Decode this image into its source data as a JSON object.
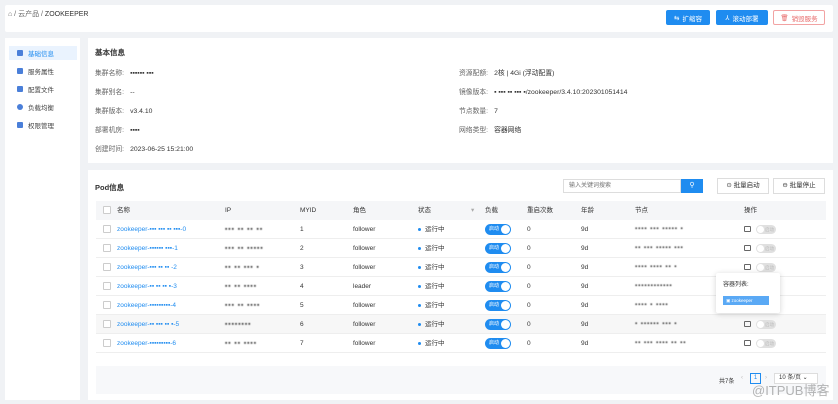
{
  "breadcrumb": {
    "home_icon": "home-icon",
    "items": [
      "云产品",
      "ZOOKEEPER"
    ]
  },
  "actions": {
    "scale": "扩缩容",
    "rolling": "滚动部署",
    "destroy": "销毁服务"
  },
  "sidebar": {
    "items": [
      {
        "label": "基础信息",
        "active": true
      },
      {
        "label": "服务属性"
      },
      {
        "label": "配置文件"
      },
      {
        "label": "负载均衡"
      },
      {
        "label": "权限管理"
      }
    ]
  },
  "basic": {
    "title": "基本信息",
    "left": [
      {
        "k": "集群名称:",
        "v": "▪▪▪▪▪▪ ▪▪▪"
      },
      {
        "k": "集群别名:",
        "v": "--"
      },
      {
        "k": "集群版本:",
        "v": "v3.4.10"
      },
      {
        "k": "部署机房:",
        "v": "▪▪▪▪"
      },
      {
        "k": "创建时间:",
        "v": "2023-06-25 15:21:00"
      }
    ],
    "right": [
      {
        "k": "资源配额:",
        "v": "2核 | 4Gi (浮动配置)"
      },
      {
        "k": "镜像版本:",
        "v": "▪ ▪▪▪ ▪▪ ▪▪▪ ▪/zookeeper/3.4.10:202301051414"
      },
      {
        "k": "节点数量:",
        "v": "7"
      },
      {
        "k": "网络类型:",
        "v": "容器网络"
      }
    ]
  },
  "pods": {
    "title": "Pod信息",
    "search_placeholder": "输入关键词搜索",
    "batch_start": "批量启动",
    "batch_stop": "批量停止",
    "columns": [
      "名称",
      "IP",
      "MYID",
      "角色",
      "状态",
      "负载",
      "重启次数",
      "年龄",
      "节点",
      "操作"
    ],
    "rows": [
      {
        "name": "zookeeper-▪▪▪ ▪▪▪ ▪▪ ▪▪▪-0",
        "ip": "▪▪▪ ▪▪ ▪▪ ▪▪",
        "myid": "1",
        "role": "follower",
        "status": "运行中",
        "load": "启动",
        "restarts": "0",
        "age": "9d",
        "node": "▪▪▪▪ ▪▪▪ ▪▪▪▪▪ ▪",
        "op": "启动"
      },
      {
        "name": "zookeeper-▪▪▪▪▪▪ ▪▪▪-1",
        "ip": "▪▪▪ ▪▪ ▪▪▪▪▪",
        "myid": "2",
        "role": "follower",
        "status": "运行中",
        "load": "启动",
        "restarts": "0",
        "age": "9d",
        "node": "▪▪ ▪▪▪ ▪▪▪▪▪ ▪▪▪",
        "op": "启动"
      },
      {
        "name": "zookeeper-▪▪▪ ▪▪ ▪▪ -2",
        "ip": "▪▪ ▪▪ ▪▪▪ ▪",
        "myid": "3",
        "role": "follower",
        "status": "运行中",
        "load": "启动",
        "restarts": "0",
        "age": "9d",
        "node": "▪▪▪▪ ▪▪▪▪ ▪▪ ▪",
        "op": "启动"
      },
      {
        "name": "zookeeper-▪▪ ▪▪ ▪▪ ▪-3",
        "ip": "▪▪ ▪▪ ▪▪▪▪",
        "myid": "4",
        "role": "leader",
        "status": "运行中",
        "load": "启动",
        "restarts": "0",
        "age": "9d",
        "node": "▪▪▪▪▪▪▪▪▪▪▪▪",
        "op": "启动"
      },
      {
        "name": "zookeeper-▪▪▪▪▪▪▪▪▪-4",
        "ip": "▪▪▪ ▪▪ ▪▪▪▪",
        "myid": "5",
        "role": "follower",
        "status": "运行中",
        "load": "启动",
        "restarts": "0",
        "age": "9d",
        "node": "▪▪▪▪ ▪ ▪▪▪▪",
        "op": "启动"
      },
      {
        "name": "zookeeper-▪▪ ▪▪▪ ▪▪ ▪-5",
        "ip": "▪▪▪▪▪▪▪▪",
        "myid": "6",
        "role": "follower",
        "status": "运行中",
        "load": "启动",
        "restarts": "0",
        "age": "9d",
        "node": "▪ ▪▪▪▪▪▪ ▪▪▪ ▪",
        "op": "启动"
      },
      {
        "name": "zookeeper-▪▪▪▪▪▪▪▪▪-6",
        "ip": "▪▪ ▪▪ ▪▪▪▪",
        "myid": "7",
        "role": "follower",
        "status": "运行中",
        "load": "启动",
        "restarts": "0",
        "age": "9d",
        "node": "▪▪ ▪▪▪ ▪▪▪▪ ▪▪ ▪▪",
        "op": "启动"
      }
    ],
    "popover": {
      "title": "容器列表:",
      "item": "zookeeper"
    },
    "pagination": {
      "total": "共7条",
      "page": "1",
      "page_size": "10 条/页"
    }
  },
  "watermark": "@ITPUB博客",
  "colors": {
    "primary": "#1f8cf0",
    "danger": "#e86b6b"
  }
}
